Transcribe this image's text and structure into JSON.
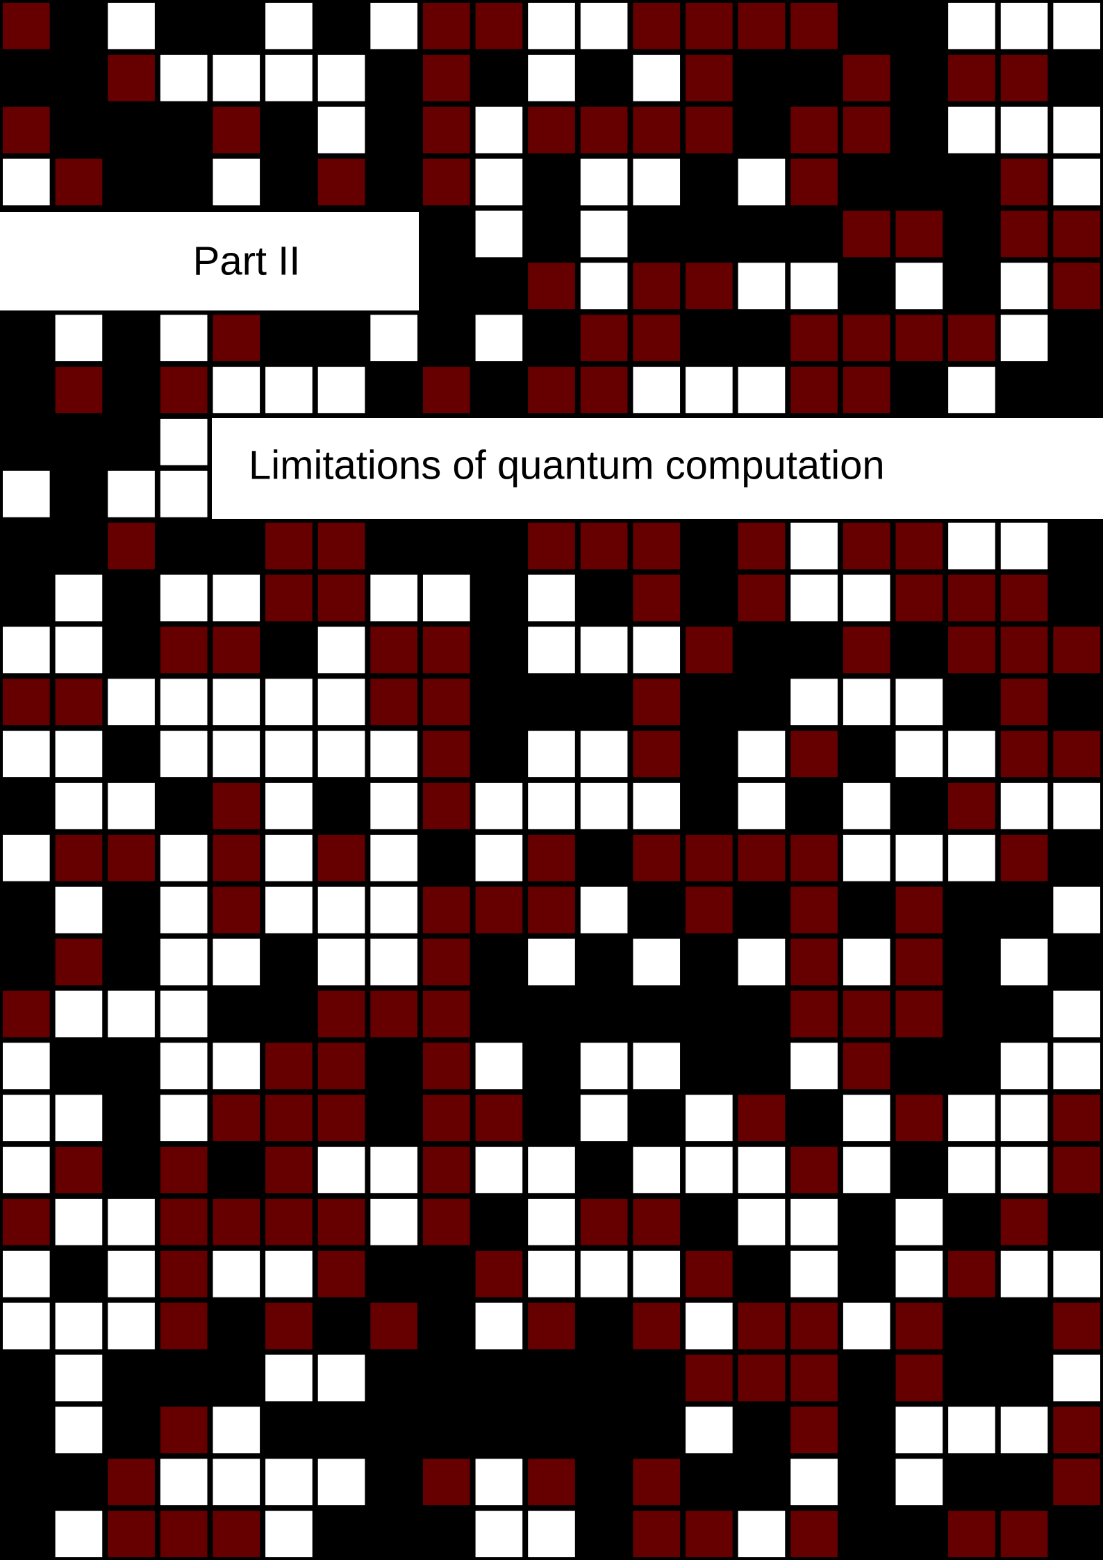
{
  "part": {
    "label": "Part II",
    "title": "Limitations of quantum computation"
  }
}
